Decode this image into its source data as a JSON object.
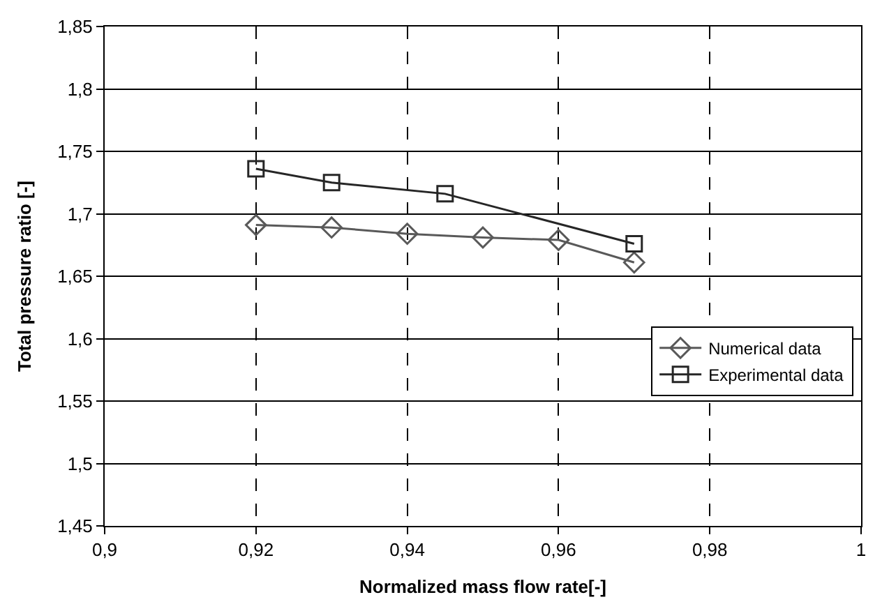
{
  "chart_data": {
    "type": "line",
    "xlabel": "Normalized mass flow rate[-]",
    "ylabel": "Total pressure ratio [-]",
    "xlim": [
      0.9,
      1
    ],
    "xticks": [
      {
        "value": 0.9,
        "label": "0,9"
      },
      {
        "value": 0.92,
        "label": "0,92"
      },
      {
        "value": 0.94,
        "label": "0,94"
      },
      {
        "value": 0.96,
        "label": "0,96"
      },
      {
        "value": 0.98,
        "label": "0,98"
      },
      {
        "value": 1,
        "label": "1"
      }
    ],
    "ylim": [
      1.45,
      1.85
    ],
    "yticks": [
      {
        "value": 1.45,
        "label": "1,45"
      },
      {
        "value": 1.5,
        "label": "1,5"
      },
      {
        "value": 1.55,
        "label": "1,55"
      },
      {
        "value": 1.6,
        "label": "1,6"
      },
      {
        "value": 1.65,
        "label": "1,65"
      },
      {
        "value": 1.7,
        "label": "1,7"
      },
      {
        "value": 1.75,
        "label": "1,75"
      },
      {
        "value": 1.8,
        "label": "1,8"
      },
      {
        "value": 1.85,
        "label": "1,85"
      }
    ],
    "grid": true,
    "legend": "bottom right",
    "series": [
      {
        "name": "Numerical data",
        "color": "#595959",
        "marker": "diamond",
        "x": [
          0.92,
          0.93,
          0.94,
          0.95,
          0.96,
          0.97
        ],
        "values": [
          1.691,
          1.689,
          1.684,
          1.681,
          1.679,
          1.661
        ]
      },
      {
        "name": "Experimental data",
        "color": "#262626",
        "marker": "square",
        "x": [
          0.92,
          0.93,
          0.945,
          0.97
        ],
        "values": [
          1.736,
          1.725,
          1.716,
          1.676
        ]
      }
    ]
  }
}
